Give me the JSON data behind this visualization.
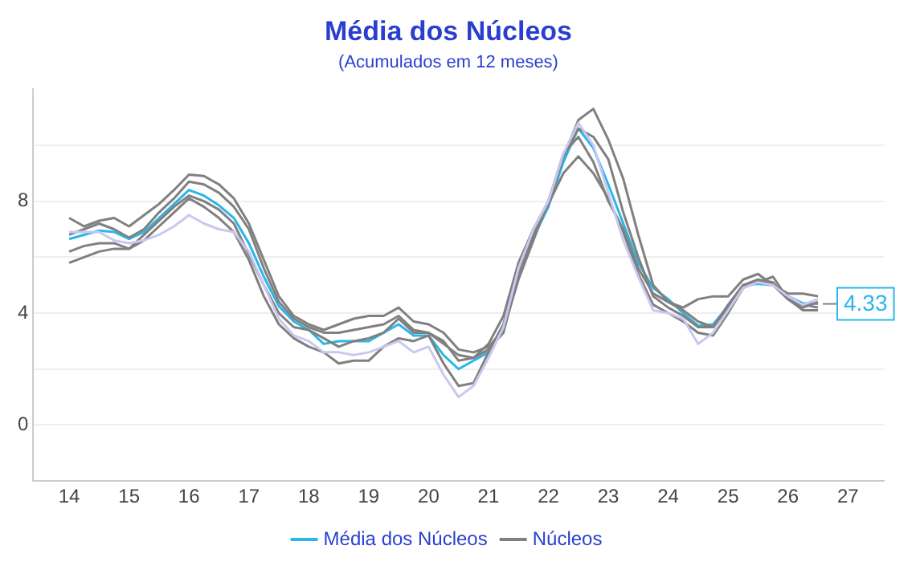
{
  "chart_data": {
    "type": "line",
    "title": "Média dos Núcleos",
    "subtitle": "(Acumulados em 12 meses)",
    "x": [
      14,
      14.25,
      14.5,
      14.75,
      15,
      15.25,
      15.5,
      15.75,
      16,
      16.25,
      16.5,
      16.75,
      17,
      17.25,
      17.5,
      17.75,
      18,
      18.25,
      18.5,
      18.75,
      19,
      19.25,
      19.5,
      19.75,
      20,
      20.25,
      20.5,
      20.75,
      21,
      21.25,
      21.5,
      21.75,
      22,
      22.25,
      22.5,
      22.75,
      23,
      23.25,
      23.5,
      23.75,
      24,
      24.25,
      24.5,
      24.75,
      25,
      25.25,
      25.5,
      25.75,
      26,
      26.25,
      26.5
    ],
    "series": [
      {
        "color": "#c8c8f0",
        "values": [
          6.9,
          6.9,
          6.9,
          6.6,
          6.5,
          6.6,
          6.8,
          7.1,
          7.5,
          7.2,
          7.0,
          6.9,
          6.2,
          5.0,
          3.8,
          3.2,
          3.0,
          2.6,
          2.6,
          2.5,
          2.6,
          2.8,
          3.0,
          2.6,
          2.8,
          1.8,
          1.0,
          1.4,
          2.4,
          3.5,
          5.6,
          7.0,
          8.0,
          9.7,
          10.8,
          10.0,
          8.3,
          6.6,
          5.3,
          4.1,
          4.0,
          3.8,
          2.9,
          3.3,
          4.1,
          4.9,
          5.1,
          5.0,
          4.6,
          4.3,
          4.5
        ]
      },
      {
        "name": "Núcleos",
        "color": "#808080",
        "values": [
          7.4,
          7.1,
          7.3,
          7.4,
          7.1,
          7.5,
          7.9,
          8.4,
          8.95,
          8.9,
          8.6,
          8.1,
          7.2,
          5.9,
          4.6,
          3.9,
          3.6,
          3.4,
          3.6,
          3.8,
          3.9,
          3.9,
          4.2,
          3.7,
          3.6,
          3.3,
          2.7,
          2.6,
          2.8,
          3.4,
          5.2,
          6.6,
          8.0,
          9.6,
          10.9,
          11.3,
          10.2,
          8.8,
          6.8,
          5.0,
          4.4,
          4.2,
          4.5,
          4.6,
          4.6,
          5.2,
          5.4,
          5.0,
          4.7,
          4.7,
          4.6
        ]
      },
      {
        "color": "#808080",
        "values": [
          6.8,
          7.0,
          7.2,
          7.0,
          6.7,
          7.0,
          7.6,
          8.1,
          8.7,
          8.6,
          8.3,
          7.8,
          7.0,
          5.6,
          4.4,
          3.8,
          3.5,
          3.3,
          3.3,
          3.4,
          3.5,
          3.6,
          3.9,
          3.4,
          3.3,
          2.9,
          2.5,
          2.4,
          2.7,
          3.3,
          5.4,
          6.8,
          7.9,
          9.6,
          10.6,
          10.3,
          9.5,
          7.6,
          6.0,
          4.6,
          4.2,
          3.9,
          3.5,
          3.5,
          4.2,
          4.9,
          5.1,
          5.3,
          4.5,
          4.3,
          4.2
        ]
      },
      {
        "color": "#808080",
        "values": [
          6.2,
          6.4,
          6.5,
          6.5,
          6.3,
          6.8,
          7.3,
          7.8,
          8.2,
          8.0,
          7.7,
          7.2,
          6.1,
          5.0,
          4.0,
          3.5,
          3.4,
          3.1,
          2.8,
          3.0,
          3.1,
          3.3,
          3.8,
          3.3,
          3.3,
          3.0,
          2.3,
          2.4,
          2.9,
          3.9,
          5.8,
          7.0,
          8.0,
          9.7,
          10.3,
          9.4,
          8.0,
          7.0,
          5.6,
          4.7,
          4.4,
          4.1,
          3.7,
          3.5,
          4.3,
          5.0,
          5.2,
          5.0,
          4.5,
          4.2,
          4.4
        ]
      },
      {
        "color": "#808080",
        "values": [
          5.8,
          6.0,
          6.2,
          6.3,
          6.3,
          6.6,
          7.1,
          7.6,
          8.1,
          7.8,
          7.4,
          6.9,
          5.9,
          4.6,
          3.6,
          3.1,
          2.8,
          2.6,
          2.2,
          2.3,
          2.3,
          2.8,
          3.1,
          3.0,
          3.2,
          2.2,
          1.4,
          1.5,
          2.6,
          3.6,
          5.7,
          7.0,
          7.9,
          9.0,
          9.6,
          9.0,
          8.1,
          6.9,
          5.4,
          4.3,
          4.0,
          3.7,
          3.3,
          3.2,
          4.0,
          4.9,
          5.2,
          5.1,
          4.5,
          4.1,
          4.1
        ]
      },
      {
        "name": "Média dos Núcleos",
        "color": "#29b6e8",
        "values": [
          6.65,
          6.8,
          6.95,
          6.9,
          6.65,
          6.9,
          7.4,
          7.9,
          8.4,
          8.2,
          7.85,
          7.4,
          6.5,
          5.3,
          4.25,
          3.7,
          3.4,
          2.9,
          3.0,
          3.0,
          3.0,
          3.3,
          3.6,
          3.2,
          3.2,
          2.5,
          2.0,
          2.3,
          2.6,
          3.6,
          5.5,
          6.7,
          7.8,
          9.4,
          10.6,
          9.9,
          8.6,
          7.2,
          5.8,
          4.9,
          4.5,
          4.0,
          3.55,
          3.6,
          4.25,
          5.0,
          5.05,
          5.0,
          4.6,
          4.35,
          4.33
        ],
        "value_labels": [
          null,
          null,
          null,
          null,
          null,
          null,
          null,
          null,
          null,
          null,
          null,
          null,
          null,
          null,
          null,
          null,
          null,
          null,
          null,
          null,
          null,
          null,
          null,
          null,
          null,
          null,
          null,
          null,
          null,
          null,
          null,
          null,
          null,
          null,
          null,
          null,
          null,
          null,
          null,
          null,
          null,
          null,
          null,
          null,
          null,
          null,
          null,
          null,
          null,
          null,
          "4.33"
        ]
      }
    ],
    "xlim": [
      13.4,
      27.6
    ],
    "xticks": [
      14,
      15,
      16,
      17,
      18,
      19,
      20,
      21,
      22,
      23,
      24,
      25,
      26,
      27
    ],
    "ylim": [
      -2,
      12
    ],
    "yticks": [
      {
        "value": -2,
        "label": null
      },
      0,
      {
        "value": 2,
        "label": null
      },
      4,
      {
        "value": 6,
        "label": null
      },
      8,
      {
        "value": 10,
        "label": null
      }
    ],
    "grid": "y",
    "legend": "bottom",
    "marker": "none",
    "line_style": "solid"
  }
}
